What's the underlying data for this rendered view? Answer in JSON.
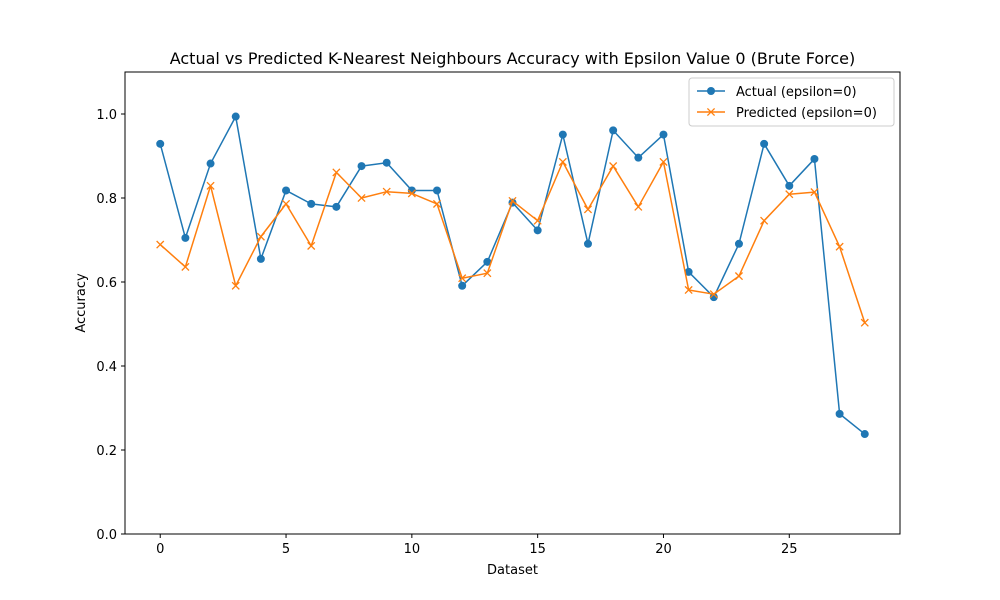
{
  "chart_data": {
    "type": "line",
    "title": "Actual vs Predicted K-Nearest Neighbours Accuracy with Epsilon Value 0 (Brute Force)",
    "xlabel": "Dataset",
    "ylabel": "Accuracy",
    "xlim": [
      -1.4,
      29.4
    ],
    "ylim": [
      0.0,
      1.1
    ],
    "xticks": [
      0,
      5,
      10,
      15,
      20,
      25
    ],
    "yticks": [
      0.0,
      0.2,
      0.4,
      0.6,
      0.8,
      1.0
    ],
    "xtick_labels": [
      "0",
      "5",
      "10",
      "15",
      "20",
      "25"
    ],
    "ytick_labels": [
      "0.0",
      "0.2",
      "0.4",
      "0.6",
      "0.8",
      "1.0"
    ],
    "grid": false,
    "legend_position": "top-right",
    "x": [
      0,
      1,
      2,
      3,
      4,
      5,
      6,
      7,
      8,
      9,
      10,
      11,
      12,
      13,
      14,
      15,
      16,
      17,
      18,
      19,
      20,
      21,
      22,
      23,
      24,
      25,
      26,
      27,
      28
    ],
    "series": [
      {
        "name": "Actual (epsilon=0)",
        "color": "#1f77b4",
        "marker": "circle",
        "values": [
          0.929,
          0.705,
          0.882,
          0.994,
          0.655,
          0.818,
          0.786,
          0.779,
          0.876,
          0.884,
          0.818,
          0.818,
          0.591,
          0.648,
          0.789,
          0.723,
          0.951,
          0.691,
          0.961,
          0.896,
          0.951,
          0.624,
          0.564,
          0.691,
          0.929,
          0.829,
          0.893,
          0.286,
          0.238
        ]
      },
      {
        "name": "Predicted (epsilon=0)",
        "color": "#ff7f0e",
        "marker": "x",
        "values": [
          0.689,
          0.636,
          0.829,
          0.591,
          0.708,
          0.786,
          0.686,
          0.861,
          0.8,
          0.815,
          0.811,
          0.786,
          0.609,
          0.621,
          0.793,
          0.746,
          0.886,
          0.773,
          0.876,
          0.779,
          0.886,
          0.581,
          0.571,
          0.614,
          0.746,
          0.809,
          0.814,
          0.684,
          0.503
        ]
      }
    ]
  }
}
